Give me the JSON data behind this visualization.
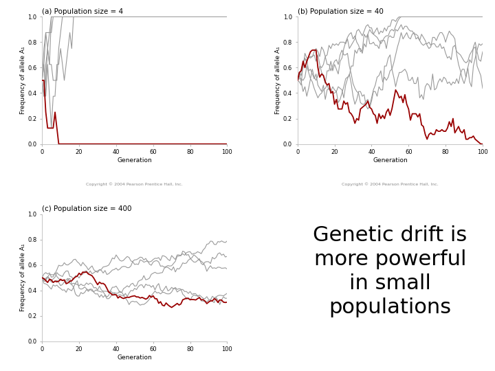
{
  "title_a": "(a) Population size = 4",
  "title_b": "(b) Population size = 40",
  "title_c": "(c) Population size = 400",
  "main_text": "Genetic drift is\nmore powerful\nin small\npopulations",
  "xlabel": "Generation",
  "ylabel": "Frequency of allele A₁",
  "copyright": "Copyright © 2004 Pearson Prentice Hall, Inc.",
  "xlim": [
    0,
    100
  ],
  "ylim": [
    0.0,
    1.0
  ],
  "yticks": [
    0.0,
    0.2,
    0.4,
    0.6,
    0.8,
    1.0
  ],
  "xticks": [
    0,
    20,
    40,
    60,
    80,
    100
  ],
  "gray_color": "#999999",
  "red_color": "#990000",
  "background": "#ffffff",
  "pop_a": 4,
  "pop_b": 40,
  "pop_c": 400,
  "n_runs": 6,
  "n_gen": 100,
  "p0": 0.5,
  "text_fontsize": 22,
  "title_fontsize": 7.5,
  "tick_labelsize": 6,
  "axis_labelsize": 6.5,
  "copyright_fontsize": 4.5
}
